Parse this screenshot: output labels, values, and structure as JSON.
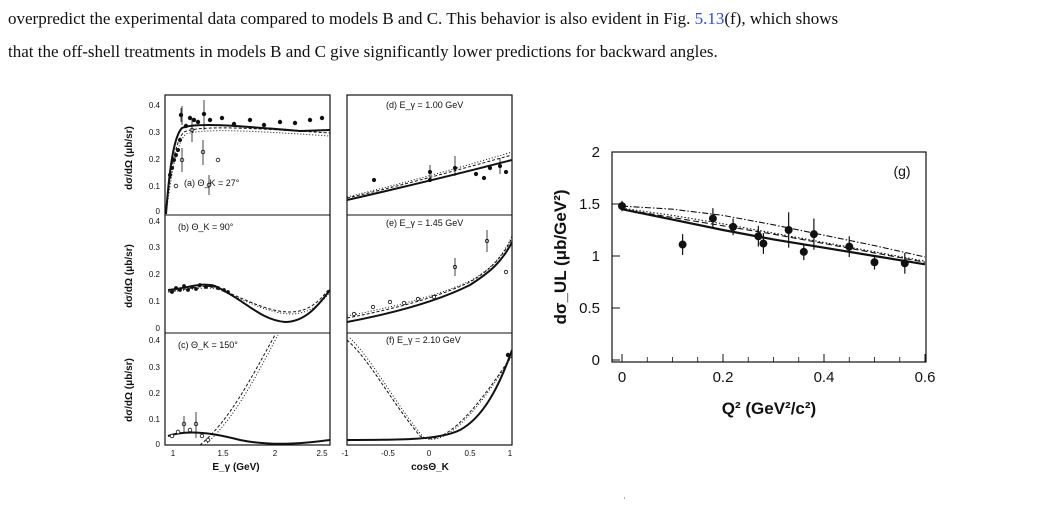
{
  "text": {
    "line1_pre": "overpredict the experimental data compared to models B and C. This behavior is also evident in Fig. ",
    "line1_ref": "5.13",
    "line1_post": "(f), which shows",
    "line2": "that the off-shell treatments in models B and C give significantly lower predictions for backward angles."
  },
  "figure_left": {
    "ylabel": "dσ/dΩ (μb/sr)",
    "xlabel_left": "E_γ (GeV)",
    "xlabel_right": "cosΘ_K",
    "yticks": [
      "0",
      "0.1",
      "0.2",
      "0.3",
      "0.4"
    ],
    "xticks_left": [
      "1",
      "1.5",
      "2",
      "2.5"
    ],
    "xticks_right": [
      "-1",
      "-0.5",
      "0",
      "0.5",
      "1"
    ],
    "panels": {
      "a": "(a) Θ_K = 27°",
      "b": "(b) Θ_K = 90°",
      "c": "(c) Θ_K = 150°",
      "d": "(d) E_γ = 1.00 GeV",
      "e": "(e) E_γ = 1.45 GeV",
      "f": "(f) E_γ = 2.10 GeV"
    }
  },
  "chart_data": {
    "type": "scatter",
    "label": "(g)",
    "xlabel": "Q² (GeV²/c²)",
    "ylabel": "dσ_UL (μb/GeV²)",
    "xlim": [
      0,
      0.6
    ],
    "ylim": [
      0,
      2
    ],
    "xticks": [
      "0",
      "0.2",
      "0.4",
      "0.6"
    ],
    "yticks": [
      "0",
      "0.5",
      "1",
      "1.5",
      "2"
    ],
    "points": [
      {
        "x": 0.0,
        "y": 1.48,
        "err": 0.05
      },
      {
        "x": 0.12,
        "y": 1.11,
        "err": 0.1
      },
      {
        "x": 0.18,
        "y": 1.36,
        "err": 0.1
      },
      {
        "x": 0.22,
        "y": 1.28,
        "err": 0.08
      },
      {
        "x": 0.27,
        "y": 1.19,
        "err": 0.1
      },
      {
        "x": 0.28,
        "y": 1.12,
        "err": 0.1
      },
      {
        "x": 0.33,
        "y": 1.25,
        "err": 0.17
      },
      {
        "x": 0.36,
        "y": 1.04,
        "err": 0.08
      },
      {
        "x": 0.38,
        "y": 1.21,
        "err": 0.15
      },
      {
        "x": 0.45,
        "y": 1.09,
        "err": 0.1
      },
      {
        "x": 0.5,
        "y": 0.94,
        "err": 0.07
      },
      {
        "x": 0.56,
        "y": 0.93,
        "err": 0.1
      }
    ],
    "series": [
      {
        "style": "solid",
        "x": [
          0,
          0.1,
          0.2,
          0.3,
          0.4,
          0.5,
          0.6
        ],
        "y": [
          1.45,
          1.35,
          1.25,
          1.16,
          1.08,
          1.0,
          0.92
        ]
      },
      {
        "style": "dashed",
        "x": [
          0,
          0.1,
          0.2,
          0.3,
          0.4,
          0.5,
          0.6
        ],
        "y": [
          1.45,
          1.37,
          1.29,
          1.21,
          1.12,
          1.03,
          0.94
        ]
      },
      {
        "style": "dotted",
        "x": [
          0,
          0.1,
          0.2,
          0.3,
          0.4,
          0.5,
          0.6
        ],
        "y": [
          1.46,
          1.39,
          1.31,
          1.22,
          1.13,
          1.04,
          0.95
        ]
      },
      {
        "style": "dashdot",
        "x": [
          0,
          0.1,
          0.2,
          0.3,
          0.4,
          0.5,
          0.6
        ],
        "y": [
          1.48,
          1.45,
          1.39,
          1.3,
          1.2,
          1.1,
          0.99
        ]
      }
    ]
  }
}
